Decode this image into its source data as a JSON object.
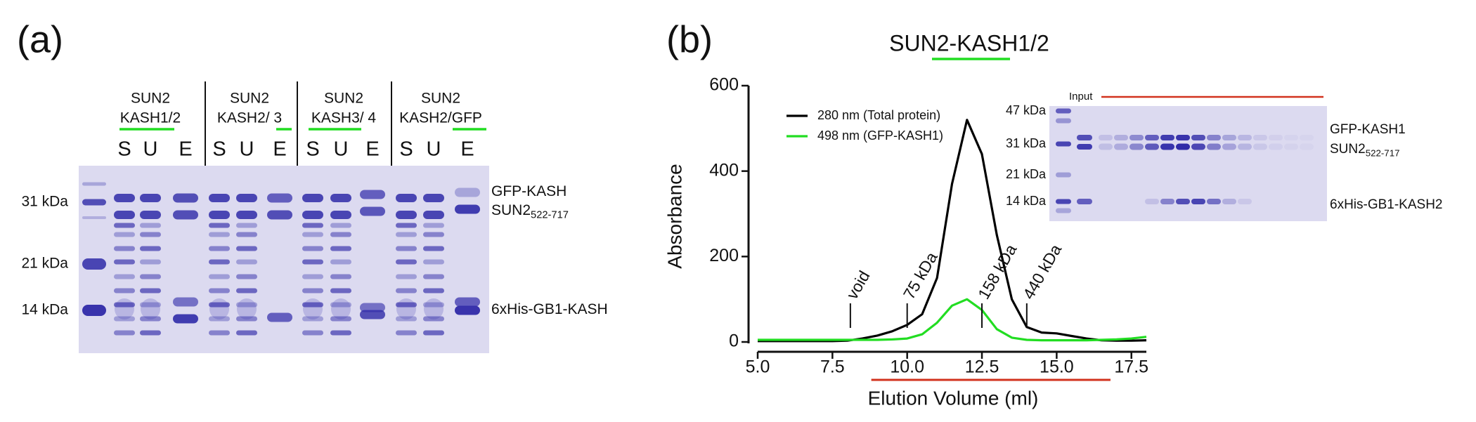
{
  "panel_a": {
    "label": "(a)",
    "groups": [
      {
        "line1": "SUN2",
        "line2": "KASH1/2"
      },
      {
        "line1": "SUN2",
        "line2": "KASH2/ 3"
      },
      {
        "line1": "SUN2",
        "line2": "KASH3/ 4"
      },
      {
        "line1": "SUN2",
        "line2": "KASH2/GFP"
      }
    ],
    "lanes": [
      "S",
      "U",
      "E",
      "S",
      "U",
      "E",
      "S",
      "U",
      "E",
      "S",
      "U",
      "E"
    ],
    "markers": [
      "31 kDa",
      "21 kDa",
      "14 kDa"
    ],
    "bands": [
      {
        "text": "GFP-KASH"
      },
      {
        "text": "SUN2",
        "sub": "522-717"
      },
      {
        "text": "6xHis-GB1-KASH"
      }
    ]
  },
  "panel_b_label": "(b)",
  "chart_data": {
    "type": "line",
    "title": "SUN2-KASH1/2",
    "x_label": "Elution Volume (ml)",
    "y_label": "Absorbance",
    "x": [
      5,
      5.5,
      6,
      6.5,
      7,
      7.5,
      8,
      8.5,
      9,
      9.5,
      10,
      10.5,
      11,
      11.5,
      12,
      12.5,
      13,
      13.5,
      14,
      14.5,
      15,
      15.5,
      16,
      16.5,
      17,
      17.5,
      18
    ],
    "series": [
      {
        "name": "280 nm (Total protein)",
        "color": "#000000",
        "values": [
          2,
          2,
          2,
          2,
          2,
          2,
          3,
          8,
          15,
          25,
          40,
          65,
          150,
          370,
          520,
          440,
          250,
          100,
          35,
          22,
          20,
          14,
          8,
          4,
          3,
          3,
          4
        ]
      },
      {
        "name": "498 nm (GFP-KASH1)",
        "color": "#22dd22",
        "values": [
          5,
          5,
          5,
          5,
          5,
          5,
          5,
          5,
          5,
          6,
          8,
          18,
          45,
          85,
          100,
          75,
          30,
          10,
          5,
          4,
          4,
          4,
          4,
          5,
          6,
          8,
          12
        ]
      }
    ],
    "xlim": [
      5,
      18
    ],
    "ylim": [
      0,
      600
    ],
    "xticks": [
      {
        "value": 5,
        "label": "5.0"
      },
      {
        "value": 7.5,
        "label": "7.5"
      },
      {
        "value": 10,
        "label": "10.0"
      },
      {
        "value": 12.5,
        "label": "12.5"
      },
      {
        "value": 15,
        "label": "15.0"
      },
      {
        "value": 17.5,
        "label": "17.5"
      }
    ],
    "yticks": [
      0,
      200,
      400,
      600
    ],
    "markers": [
      {
        "x": 8.1,
        "label": "void"
      },
      {
        "x": 10,
        "label": "75 kDa"
      },
      {
        "x": 12.5,
        "label": "158 kDa"
      },
      {
        "x": 14,
        "label": "440 kDa"
      }
    ],
    "fraction_range": [
      8.8,
      16.8
    ],
    "fraction_color": "#d2321e",
    "legend": "upper left"
  },
  "inset": {
    "input": "Input",
    "markers": [
      "47 kDa",
      "31 kDa",
      "21 kDa",
      "14 kDa"
    ],
    "bands": [
      {
        "text": "GFP-KASH1"
      },
      {
        "text": "SUN2",
        "sub": "522-717"
      },
      {
        "text": "6xHis-GB1-KASH2"
      }
    ]
  }
}
